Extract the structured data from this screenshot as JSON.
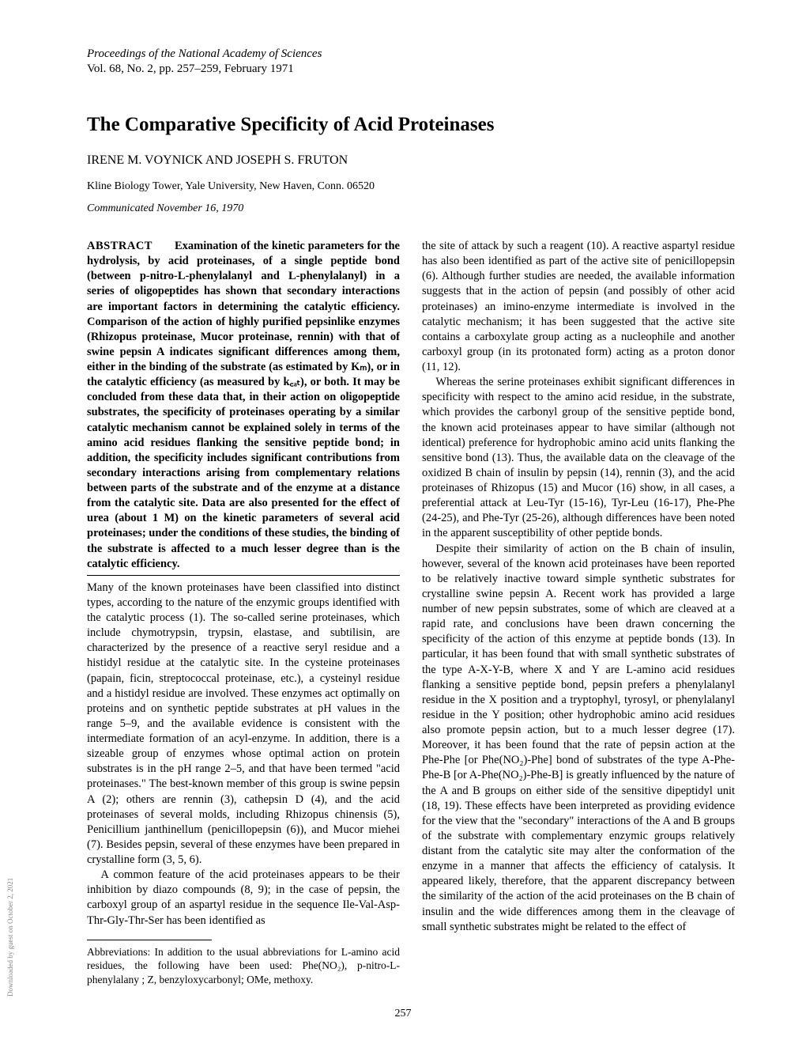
{
  "header": {
    "journal": "Proceedings of the National Academy of Sciences",
    "vol_line": "Vol. 68, No. 2, pp. 257–259, February 1971"
  },
  "title": "The Comparative Specificity of Acid Proteinases",
  "authors": "IRENE M. VOYNICK AND JOSEPH S. FRUTON",
  "affiliation": "Kline Biology Tower, Yale University, New Haven, Conn. 06520",
  "communicated": "Communicated November 16, 1970",
  "abstract": {
    "label": "ABSTRACT",
    "text": "Examination of the kinetic parameters for the hydrolysis, by acid proteinases, of a single peptide bond (between p-nitro-L-phenylalanyl and L-phenylalanyl) in a series of oligopeptides has shown that secondary interactions are important factors in determining the catalytic efficiency. Comparison of the action of highly purified pepsinlike enzymes (Rhizopus proteinase, Mucor proteinase, rennin) with that of swine pepsin A indicates significant differences among them, either in the binding of the substrate (as estimated by Kₘ), or in the catalytic efficiency (as measured by k꜀ₐₜ), or both. It may be concluded from these data that, in their action on oligopeptide substrates, the specificity of proteinases operating by a similar catalytic mechanism cannot be explained solely in terms of the amino acid residues flanking the sensitive peptide bond; in addition, the specificity includes significant contributions from secondary interactions arising from complementary relations between parts of the substrate and of the enzyme at a distance from the catalytic site. Data are also presented for the effect of urea (about 1 M) on the kinetic parameters of several acid proteinases; under the conditions of these studies, the binding of the substrate is affected to a much lesser degree than is the catalytic efficiency."
  },
  "col1": {
    "p1": "Many of the known proteinases have been classified into distinct types, according to the nature of the enzymic groups identified with the catalytic process (1). The so-called serine proteinases, which include chymotrypsin, trypsin, elastase, and subtilisin, are characterized by the presence of a reactive seryl residue and a histidyl residue at the catalytic site. In the cysteine proteinases (papain, ficin, streptococcal proteinase, etc.), a cysteinyl residue and a histidyl residue are involved. These enzymes act optimally on proteins and on synthetic peptide substrates at pH values in the range 5–9, and the available evidence is consistent with the intermediate formation of an acyl-enzyme. In addition, there is a sizeable group of enzymes whose optimal action on protein substrates is in the pH range 2–5, and that have been termed \"acid proteinases.\" The best-known member of this group is swine pepsin A (2); others are rennin (3), cathepsin D (4), and the acid proteinases of several molds, including Rhizopus chinensis (5), Penicillium janthinellum (penicillopepsin (6)), and Mucor miehei (7). Besides pepsin, several of these enzymes have been prepared in crystalline form (3, 5, 6).",
    "p2": "A common feature of the acid proteinases appears to be their inhibition by diazo compounds (8, 9); in the case of pepsin, the carboxyl group of an aspartyl residue in the sequence Ile-Val-Asp-Thr-Gly-Thr-Ser has been identified as"
  },
  "footnote": "Abbreviations: In addition to the usual abbreviations for L-amino acid residues, the following have been used: Phe(NO₂), p-nitro-L-phenylalany ; Z, benzyloxycarbonyl; OMe, methoxy.",
  "col2": {
    "p1": "the site of attack by such a reagent (10). A reactive aspartyl residue has also been identified as part of the active site of penicillopepsin (6). Although further studies are needed, the available information suggests that in the action of pepsin (and possibly of other acid proteinases) an imino-enzyme intermediate is involved in the catalytic mechanism; it has been suggested that the active site contains a carboxylate group acting as a nucleophile and another carboxyl group (in its protonated form) acting as a proton donor (11, 12).",
    "p2": "Whereas the serine proteinases exhibit significant differences in specificity with respect to the amino acid residue, in the substrate, which provides the carbonyl group of the sensitive peptide bond, the known acid proteinases appear to have similar (although not identical) preference for hydrophobic amino acid units flanking the sensitive bond (13). Thus, the available data on the cleavage of the oxidized B chain of insulin by pepsin (14), rennin (3), and the acid proteinases of Rhizopus (15) and Mucor (16) show, in all cases, a preferential attack at Leu-Tyr (15-16), Tyr-Leu (16-17), Phe-Phe (24-25), and Phe-Tyr (25-26), although differences have been noted in the apparent susceptibility of other peptide bonds.",
    "p3": "Despite their similarity of action on the B chain of insulin, however, several of the known acid proteinases have been reported to be relatively inactive toward simple synthetic substrates for crystalline swine pepsin A. Recent work has provided a large number of new pepsin substrates, some of which are cleaved at a rapid rate, and conclusions have been drawn concerning the specificity of the action of this enzyme at peptide bonds (13). In particular, it has been found that with small synthetic substrates of the type A-X-Y-B, where X and Y are L-amino acid residues flanking a sensitive peptide bond, pepsin prefers a phenylalanyl residue in the X position and a tryptophyl, tyrosyl, or phenylalanyl residue in the Y position; other hydrophobic amino acid residues also promote pepsin action, but to a much lesser degree (17). Moreover, it has been found that the rate of pepsin action at the Phe-Phe [or Phe(NO₂)-Phe] bond of substrates of the type A-Phe-Phe-B [or A-Phe(NO₂)-Phe-B] is greatly influenced by the nature of the A and B groups on either side of the sensitive dipeptidyl unit (18, 19). These effects have been interpreted as providing evidence for the view that the \"secondary\" interactions of the A and B groups of the substrate with complementary enzymic groups relatively distant from the catalytic site may alter the conformation of the enzyme in a manner that affects the efficiency of catalysis. It appeared likely, therefore, that the apparent discrepancy between the similarity of the action of the acid proteinases on the B chain of insulin and the wide differences among them in the cleavage of small synthetic substrates might be related to the effect of"
  },
  "page_number": "257",
  "side_text": "Downloaded by guest on October 2, 2021"
}
